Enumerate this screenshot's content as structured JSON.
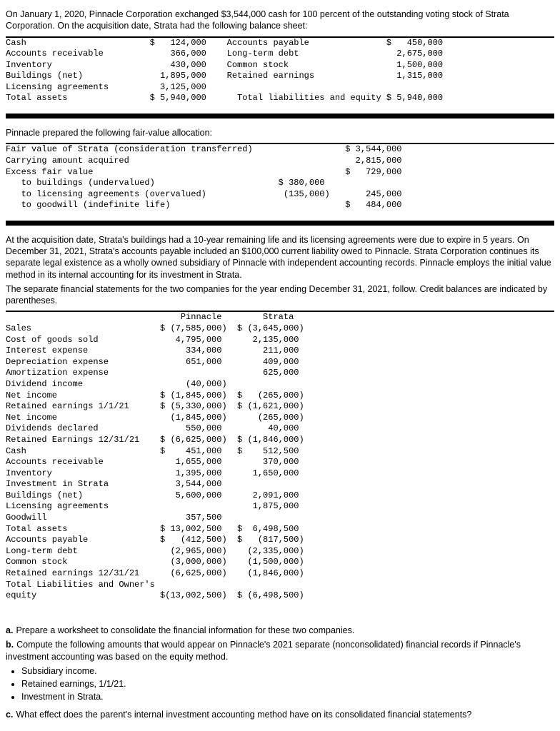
{
  "intro": "On January 1, 2020, Pinnacle Corporation exchanged $3,544,000 cash for 100 percent of the outstanding voting stock of Strata Corporation. On the acquisition date, Strata had the following balance sheet:",
  "bs": {
    "r1": "Cash                        $   124,000    Accounts payable               $   450,000",
    "r2": "Accounts receivable             366,000    Long-term debt                   2,675,000",
    "r3": "Inventory                       430,000    Common stock                     1,500,000",
    "r4": "Buildings (net)               1,895,000    Retained earnings                1,315,000",
    "r5": "Licensing agreements          3,125,000",
    "r6": "Total assets                $ 5,940,000      Total liabilities and equity $ 5,940,000"
  },
  "fv_intro": "Pinnacle prepared the following fair-value allocation:",
  "fv": {
    "r1": "Fair value of Strata (consideration transferred)                  $ 3,544,000",
    "r2": "Carrying amount acquired                                            2,815,000",
    "r3": "Excess fair value                                                 $   729,000",
    "r4": "   to buildings (undervalued)                        $ 380,000",
    "r5": "   to licensing agreements (overvalued)               (135,000)       245,000",
    "r6": "   to goodwill (indefinite life)                                  $   484,000"
  },
  "mid1": "At the acquisition date, Strata's buildings had a 10-year remaining life and its licensing agreements were due to expire in 5 years. On December 31, 2021, Strata's accounts payable included an $100,000 current liability owed to Pinnacle. Strata Corporation continues its separate legal existence as a wholly owned subsidiary of Pinnacle with independent accounting records. Pinnacle employs the initial value method in its internal accounting for its investment in Strata.",
  "mid2": "The separate financial statements for the two companies for the year ending December 31, 2021, follow. Credit balances are indicated by parentheses.",
  "fs": {
    "h": "                                  Pinnacle        Strata",
    "r1": "Sales                         $ (7,585,000)  $ (3,645,000)",
    "r2": "Cost of goods sold               4,795,000      2,135,000",
    "r3": "Interest expense                   334,000        211,000",
    "r4": "Depreciation expense               651,000        409,000",
    "r5": "Amortization expense                              625,000",
    "r6": "Dividend income                    (40,000)",
    "r7": "Net income                    $ (1,845,000)  $   (265,000)",
    "r8": "Retained earnings 1/1/21      $ (5,330,000)  $ (1,621,000)",
    "r9": "Net income                      (1,845,000)      (265,000)",
    "r10": "Dividends declared                 550,000         40,000",
    "r11": "Retained Earnings 12/31/21    $ (6,625,000)  $ (1,846,000)",
    "r12": "Cash                          $    451,000   $    512,500",
    "r13": "Accounts receivable              1,655,000        370,000",
    "r14": "Inventory                        1,395,000      1,650,000",
    "r15": "Investment in Strata             3,544,000",
    "r16": "Buildings (net)                  5,600,000      2,091,000",
    "r17": "Licensing agreements                            1,875,000",
    "r18": "Goodwill                           357,500",
    "r19": "Total assets                  $ 13,002,500   $  6,498,500",
    "r20": "Accounts payable              $   (412,500)  $   (817,500)",
    "r21": "Long-term debt                  (2,965,000)    (2,335,000)",
    "r22": "Common stock                    (3,000,000)    (1,500,000)",
    "r23": "Retained earnings 12/31/21      (6,625,000)    (1,846,000)",
    "r24": "Total Liabilities and Owner's\nequity                        $(13,002,500)  $ (6,498,500)"
  },
  "qa_label": "a.",
  "qa": "Prepare a worksheet to consolidate the financial information for these two companies.",
  "qb_label": "b.",
  "qb": "Compute the following amounts that would appear on Pinnacle's 2021 separate (nonconsolidated) financial records if Pinnacle's investment accounting was based on the equity method.",
  "b1": "Subsidiary income.",
  "b2": "Retained earnings, 1/1/21.",
  "b3": "Investment in Strata.",
  "qc_label": "c.",
  "qc": "What effect does the parent's internal investment accounting method have on its consolidated financial statements?"
}
